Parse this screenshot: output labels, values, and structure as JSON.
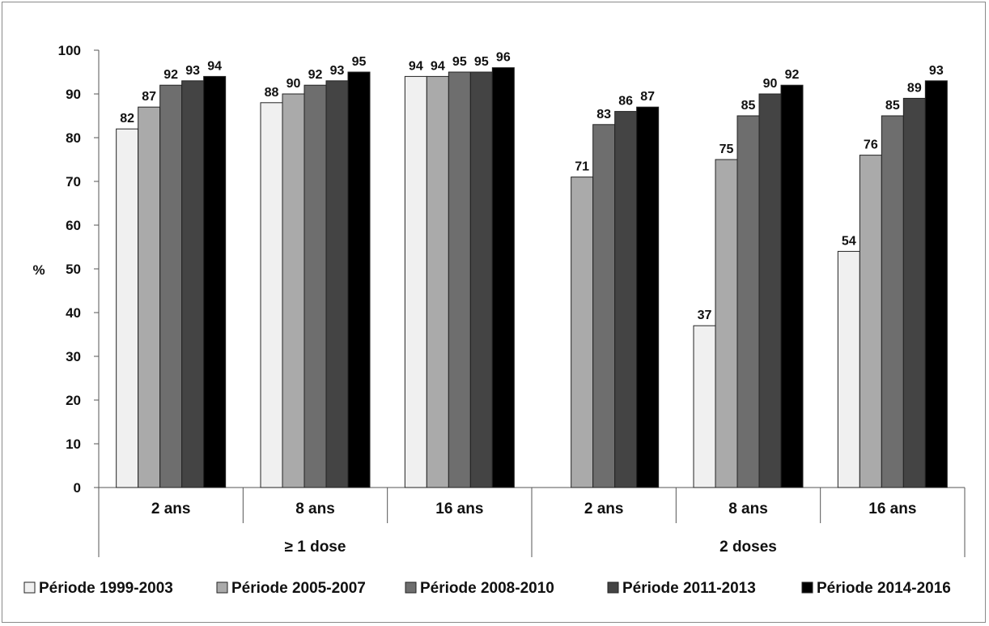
{
  "chart_data": {
    "type": "bar",
    "ylabel": "%",
    "ylim": [
      0,
      100
    ],
    "yticks": [
      0,
      10,
      20,
      30,
      40,
      50,
      60,
      70,
      80,
      90,
      100
    ],
    "grid": false,
    "legend_position": "bottom",
    "groups": [
      {
        "label": "≥ 1 dose",
        "categories": [
          "2 ans",
          "8 ans",
          "16 ans"
        ]
      },
      {
        "label": "2 doses",
        "categories": [
          "2 ans",
          "8 ans",
          "16 ans"
        ]
      }
    ],
    "series": [
      {
        "name": "Période 1999-2003",
        "color": "#f0f0f0",
        "values": [
          82,
          88,
          94,
          null,
          37,
          54
        ]
      },
      {
        "name": "Période 2005-2007",
        "color": "#aaaaaa",
        "values": [
          87,
          90,
          94,
          71,
          75,
          76
        ]
      },
      {
        "name": "Période 2008-2010",
        "color": "#6e6e6e",
        "values": [
          92,
          92,
          95,
          83,
          85,
          85
        ]
      },
      {
        "name": "Période 2011-2013",
        "color": "#444444",
        "values": [
          93,
          93,
          95,
          86,
          90,
          89
        ]
      },
      {
        "name": "Période 2014-2016",
        "color": "#000000",
        "values": [
          94,
          95,
          96,
          87,
          92,
          93
        ]
      }
    ],
    "data_labels": [
      [
        82,
        88,
        94,
        null,
        37,
        54
      ],
      [
        87,
        90,
        94,
        71,
        75,
        76
      ],
      [
        92,
        92,
        95,
        83,
        85,
        85
      ],
      [
        93,
        93,
        95,
        86,
        90,
        89
      ],
      [
        94,
        95,
        96,
        87,
        92,
        93
      ]
    ]
  }
}
